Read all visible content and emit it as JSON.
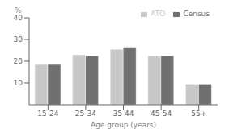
{
  "chart_data": {
    "type": "bar",
    "categories": [
      "15-24",
      "25-34",
      "35-44",
      "45-54",
      "55+"
    ],
    "series": [
      {
        "name": "ATO",
        "color": "#c8c8c8",
        "values": [
          18.5,
          23.0,
          25.5,
          22.5,
          9.5
        ]
      },
      {
        "name": "Census",
        "color": "#707070",
        "values": [
          18.5,
          22.5,
          26.5,
          22.5,
          9.5
        ]
      }
    ],
    "xlabel": "Age group (years)",
    "ylabel": "%",
    "ylim": [
      0,
      40
    ],
    "yticks": [
      10,
      20,
      30,
      40
    ],
    "legend": "upper right",
    "grid": false
  }
}
